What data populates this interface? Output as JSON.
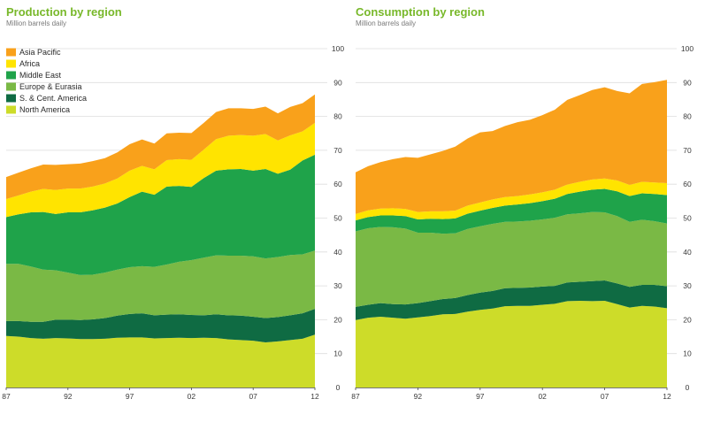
{
  "colors": {
    "asia_pacific": "#F9A11B",
    "africa": "#FFE400",
    "middle_east": "#1FA34A",
    "europe_eurasia": "#7AB945",
    "s_cent_america": "#0F6B43",
    "north_america": "#CDDC29",
    "title": "#78B82A",
    "grid": "#DDDDDD",
    "axis_line": "#4A4A4A"
  },
  "chart_data": [
    {
      "type": "area",
      "stacked": true,
      "title": "Production by region",
      "subtitle": "Million barrels daily",
      "ylim": [
        0,
        100
      ],
      "yticks": [
        "0",
        "10",
        "20",
        "30",
        "40",
        "50",
        "60",
        "70",
        "80",
        "90",
        "100"
      ],
      "xticks": [
        "87",
        "92",
        "97",
        "02",
        "07",
        "12"
      ],
      "grid": true,
      "legend_position": "top-left",
      "x": [
        1987,
        1988,
        1989,
        1990,
        1991,
        1992,
        1993,
        1994,
        1995,
        1996,
        1997,
        1998,
        1999,
        2000,
        2001,
        2002,
        2003,
        2004,
        2005,
        2006,
        2007,
        2008,
        2009,
        2010,
        2011,
        2012
      ],
      "series": [
        {
          "name": "North America",
          "color_key": "north_america",
          "values": [
            15.2,
            15.0,
            14.6,
            14.4,
            14.6,
            14.5,
            14.3,
            14.3,
            14.4,
            14.7,
            14.8,
            14.8,
            14.5,
            14.6,
            14.7,
            14.6,
            14.7,
            14.6,
            14.2,
            14.0,
            13.8,
            13.3,
            13.6,
            14.0,
            14.4,
            15.6
          ]
        },
        {
          "name": "S. & Cent. America",
          "color_key": "s_cent_america",
          "values": [
            4.4,
            4.6,
            4.8,
            5.0,
            5.4,
            5.5,
            5.6,
            5.8,
            6.1,
            6.5,
            6.9,
            7.1,
            6.8,
            6.9,
            6.9,
            6.8,
            6.6,
            7.0,
            7.1,
            7.2,
            7.1,
            7.2,
            7.2,
            7.3,
            7.5,
            7.6
          ]
        },
        {
          "name": "Europe & Eurasia",
          "color_key": "europe_eurasia",
          "values": [
            16.9,
            16.9,
            16.3,
            15.4,
            14.6,
            13.9,
            13.3,
            13.2,
            13.4,
            13.6,
            13.8,
            13.9,
            14.3,
            14.8,
            15.5,
            16.2,
            17.0,
            17.4,
            17.6,
            17.7,
            17.8,
            17.6,
            17.7,
            17.8,
            17.4,
            17.2
          ]
        },
        {
          "name": "Middle East",
          "color_key": "middle_east",
          "values": [
            13.8,
            14.6,
            16.0,
            17.0,
            16.6,
            17.8,
            18.5,
            19.0,
            19.2,
            19.5,
            20.7,
            22.0,
            21.3,
            23.0,
            22.4,
            21.6,
            23.5,
            25.0,
            25.5,
            25.6,
            25.3,
            26.4,
            24.6,
            25.2,
            27.7,
            28.3
          ]
        },
        {
          "name": "Africa",
          "color_key": "africa",
          "values": [
            5.3,
            5.6,
            6.1,
            6.8,
            7.1,
            7.0,
            7.0,
            7.0,
            7.1,
            7.4,
            7.8,
            7.6,
            7.5,
            7.8,
            7.9,
            8.0,
            8.4,
            9.3,
            9.9,
            10.0,
            10.3,
            10.3,
            9.8,
            10.1,
            8.6,
            9.4
          ]
        },
        {
          "name": "Asia Pacific",
          "color_key": "asia_pacific",
          "values": [
            6.5,
            6.7,
            6.9,
            7.2,
            7.4,
            7.2,
            7.4,
            7.5,
            7.5,
            7.7,
            7.8,
            7.8,
            7.6,
            7.9,
            7.8,
            7.9,
            7.9,
            8.0,
            8.1,
            7.9,
            7.9,
            8.1,
            8.0,
            8.4,
            8.3,
            8.4
          ]
        }
      ]
    },
    {
      "type": "area",
      "stacked": true,
      "title": "Consumption by region",
      "subtitle": "Million barrels daily",
      "ylim": [
        0,
        100
      ],
      "yticks": [
        "0",
        "10",
        "20",
        "30",
        "40",
        "50",
        "60",
        "70",
        "80",
        "90",
        "100"
      ],
      "xticks": [
        "87",
        "92",
        "97",
        "02",
        "07",
        "12"
      ],
      "grid": true,
      "x": [
        1987,
        1988,
        1989,
        1990,
        1991,
        1992,
        1993,
        1994,
        1995,
        1996,
        1997,
        1998,
        1999,
        2000,
        2001,
        2002,
        2003,
        2004,
        2005,
        2006,
        2007,
        2008,
        2009,
        2010,
        2011,
        2012
      ],
      "series": [
        {
          "name": "North America",
          "color_key": "north_america",
          "values": [
            19.9,
            20.6,
            20.9,
            20.6,
            20.3,
            20.7,
            21.1,
            21.6,
            21.7,
            22.4,
            22.9,
            23.3,
            24.0,
            24.1,
            24.1,
            24.4,
            24.7,
            25.5,
            25.6,
            25.5,
            25.6,
            24.6,
            23.6,
            24.1,
            23.9,
            23.4
          ]
        },
        {
          "name": "S. & Cent. America",
          "color_key": "s_cent_america",
          "values": [
            3.9,
            3.8,
            4.0,
            4.0,
            4.2,
            4.2,
            4.4,
            4.5,
            4.7,
            4.9,
            5.1,
            5.2,
            5.3,
            5.3,
            5.4,
            5.4,
            5.3,
            5.5,
            5.6,
            5.9,
            6.0,
            6.1,
            6.1,
            6.2,
            6.4,
            6.5
          ]
        },
        {
          "name": "Europe & Eurasia",
          "color_key": "europe_eurasia",
          "values": [
            22.3,
            22.6,
            22.5,
            22.7,
            22.4,
            20.8,
            20.2,
            19.3,
            19.1,
            19.5,
            19.6,
            19.8,
            19.6,
            19.6,
            19.7,
            19.8,
            20.1,
            20.1,
            20.2,
            20.4,
            20.1,
            19.9,
            19.2,
            19.2,
            18.8,
            18.5
          ]
        },
        {
          "name": "Middle East",
          "color_key": "middle_east",
          "values": [
            3.2,
            3.3,
            3.4,
            3.5,
            3.7,
            3.9,
            4.1,
            4.3,
            4.4,
            4.5,
            4.6,
            4.7,
            4.8,
            5.0,
            5.2,
            5.4,
            5.6,
            6.0,
            6.4,
            6.6,
            6.9,
            7.3,
            7.6,
            7.8,
            8.0,
            8.4
          ]
        },
        {
          "name": "Africa",
          "color_key": "africa",
          "values": [
            1.9,
            2.0,
            2.0,
            2.1,
            2.1,
            2.2,
            2.2,
            2.3,
            2.3,
            2.4,
            2.4,
            2.5,
            2.5,
            2.5,
            2.6,
            2.6,
            2.7,
            2.8,
            2.9,
            3.0,
            3.1,
            3.2,
            3.3,
            3.4,
            3.4,
            3.5
          ]
        },
        {
          "name": "Asia Pacific",
          "color_key": "asia_pacific",
          "values": [
            12.3,
            13.0,
            13.7,
            14.5,
            15.3,
            16.0,
            16.8,
            17.8,
            18.9,
            19.8,
            20.7,
            20.2,
            21.0,
            21.8,
            22.0,
            22.8,
            23.6,
            25.0,
            25.6,
            26.4,
            26.9,
            26.4,
            27.0,
            28.9,
            29.6,
            30.5
          ]
        }
      ]
    }
  ]
}
